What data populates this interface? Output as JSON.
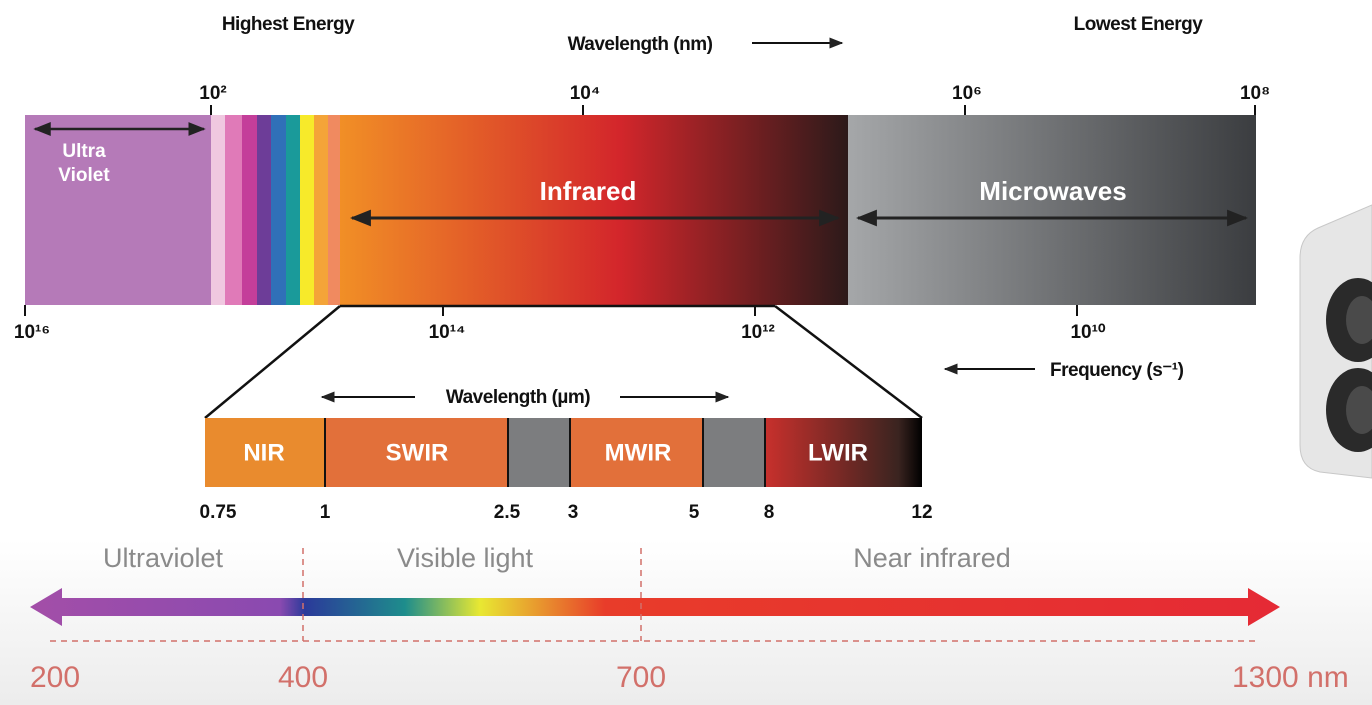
{
  "header": {
    "left": "Highest Energy",
    "center": "Wavelength (nm)",
    "right": "Lowest Energy"
  },
  "spectrum": {
    "wavelength_ticks": [
      "10²",
      "10⁴",
      "10⁶",
      "10⁸"
    ],
    "frequency_ticks": [
      "10¹⁶",
      "10¹⁴",
      "10¹²",
      "10¹⁰"
    ],
    "frequency_label": "Frequency (s⁻¹)",
    "regions": {
      "uv_line1": "Ultra",
      "uv_line2": "Violet",
      "infrared": "Infrared",
      "microwaves": "Microwaves"
    }
  },
  "infrared_detail": {
    "title": "Wavelength (µm)",
    "bands": [
      "NIR",
      "SWIR",
      "MWIR",
      "LWIR"
    ],
    "ticks": [
      "0.75",
      "1",
      "2.5",
      "3",
      "5",
      "8",
      "12"
    ]
  },
  "light_scale": {
    "regions": [
      "Ultraviolet",
      "Visible light",
      "Near infrared"
    ],
    "ticks": [
      "200",
      "400",
      "700",
      "1300 nm"
    ]
  }
}
